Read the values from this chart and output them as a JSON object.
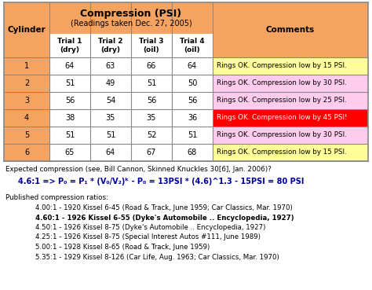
{
  "title_main": "Compression (PSI)",
  "title_sub": "(Readings taken Dec. 27, 2005)",
  "cylinders": [
    1,
    2,
    3,
    4,
    5,
    6
  ],
  "trial1": [
    64,
    51,
    56,
    38,
    51,
    65
  ],
  "trial2": [
    63,
    49,
    54,
    35,
    51,
    64
  ],
  "trial3": [
    66,
    51,
    56,
    35,
    52,
    67
  ],
  "trial4": [
    64,
    50,
    56,
    36,
    51,
    68
  ],
  "comments": [
    "Rings OK. Compression low by 15 PSI.",
    "Rings OK. Compression low by 30 PSI.",
    "Rings OK. Compression low by 25 PSI.",
    "Rings OK. Compression low by 45 PSI!",
    "Rings OK. Compression low by 30 PSI.",
    "Rings OK. Compression low by 15 PSI."
  ],
  "comment_bg": [
    "#ffff99",
    "#ffccee",
    "#ffccee",
    "#ff0000",
    "#ffccee",
    "#ffff99"
  ],
  "comment_fg": [
    "#000000",
    "#000000",
    "#000000",
    "#ffffff",
    "#000000",
    "#000000"
  ],
  "header_bg": "#f4a460",
  "data_bg": "#ffffff",
  "note_line1": "Expected compression (see, Bill Cannon, Skinned Knuckles 30[6], Jan. 2006)?",
  "note_line2_plain": "4.6:1 => P",
  "note_line2_bold": "4.6:1 => P₀ = P₁ * (V₀/V₂)ᵏ - P₀ = 13PSI * (4.6)^1.3 - 15PSI = 80 PSI",
  "published_title": "Published compression ratios:",
  "published_lines": [
    "4.00:1 - 1920 Kissel 6-45 (Road & Track, June 1959; Car Classics, Mar. 1970)",
    "4.60:1 - 1926 Kissel 6-55 (Dyke's Automobile .. Encyclopedia, 1927)",
    "4.50:1 - 1926 Kissel 8-75 (Dyke's Automobile .. Encyclopedia, 1927)",
    "4.25:1 - 1926 Kissel 8-75 (Special Interest Autos #111, June 1989)",
    "5.00:1 - 1928 Kissel 8-65 (Road & Track, June 1959)",
    "5.35:1 - 1929 Kissel 8-126 (Car Life, Aug. 1963; Car Classics, Mar. 1970)"
  ],
  "published_bold": [
    false,
    true,
    false,
    false,
    false,
    false
  ],
  "bg_color": "#ffffff",
  "border_color": "#aaaaaa"
}
